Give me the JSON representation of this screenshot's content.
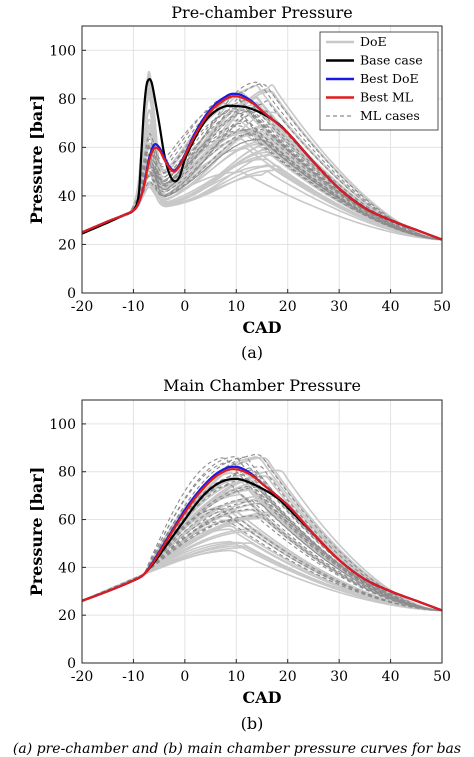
{
  "chart_data": [
    {
      "type": "line",
      "title": "Pre-chamber Pressure",
      "xlabel": "CAD",
      "ylabel": "Pressure [bar]",
      "panel_label": "(a)",
      "xlim": [
        -20,
        50
      ],
      "ylim": [
        0,
        110
      ],
      "xticks": [
        "-20",
        "-10",
        "0",
        "10",
        "20",
        "30",
        "40",
        "50"
      ],
      "yticks": [
        "0",
        "20",
        "40",
        "60",
        "80",
        "100"
      ],
      "grid": true,
      "legend_position": "top-right",
      "legend": [
        "DoE",
        "Base case",
        "Best DoE",
        "Best ML",
        "ML cases"
      ],
      "colors": {
        "DoE": "#c8c8c8",
        "Base case": "#000000",
        "Best DoE": "#1a1ae6",
        "Best ML": "#e01b1b",
        "ML cases": "#8c8c8c"
      },
      "series": [
        {
          "name": "Base case",
          "x": [
            -20,
            -15,
            -12,
            -10,
            -9,
            -8.5,
            -8,
            -7.5,
            -7,
            -6.5,
            -6,
            -5,
            -4,
            -3,
            -2,
            -1,
            0,
            2,
            4,
            6,
            8,
            10,
            12,
            15,
            18,
            20,
            25,
            30,
            35,
            40,
            45,
            50
          ],
          "y": [
            24.5,
            29,
            32,
            34,
            40,
            56,
            74,
            85,
            88,
            87,
            82,
            70,
            57,
            49,
            46,
            48,
            55,
            64,
            71,
            75,
            77,
            77,
            76.5,
            74,
            70,
            66,
            54,
            43,
            35,
            30,
            26,
            22
          ]
        },
        {
          "name": "Best DoE",
          "x": [
            -20,
            -15,
            -12,
            -10,
            -9,
            -8,
            -7,
            -6,
            -5,
            -4,
            -3,
            -2,
            -1,
            0,
            2,
            4,
            6,
            8,
            9,
            10,
            11,
            13,
            15,
            20,
            25,
            30,
            35,
            40,
            45,
            50
          ],
          "y": [
            25,
            29.5,
            32,
            34,
            37,
            44,
            55,
            61,
            60,
            56,
            52,
            50.5,
            53,
            57,
            66,
            73,
            78,
            81,
            82,
            82,
            81.5,
            79,
            75,
            66,
            54,
            43,
            35,
            30,
            26,
            22
          ]
        },
        {
          "name": "Best ML",
          "x": [
            -20,
            -15,
            -12,
            -10,
            -9,
            -8,
            -7,
            -6,
            -5,
            -4,
            -3,
            -2,
            -1,
            0,
            2,
            4,
            6,
            8,
            9,
            10,
            11,
            13,
            15,
            20,
            25,
            30,
            35,
            40,
            45,
            50
          ],
          "y": [
            25,
            29.5,
            32,
            34,
            37,
            43.5,
            54,
            59.5,
            59,
            55,
            51.5,
            50,
            52.5,
            56.5,
            65,
            72,
            77,
            80,
            81,
            81,
            80.5,
            78.5,
            75,
            66,
            54,
            43,
            35,
            30,
            26,
            22
          ]
        }
      ]
    },
    {
      "type": "line",
      "title": "Main Chamber Pressure",
      "xlabel": "CAD",
      "ylabel": "Pressure [bar]",
      "panel_label": "(b)",
      "xlim": [
        -20,
        50
      ],
      "ylim": [
        0,
        110
      ],
      "xticks": [
        "-20",
        "-10",
        "0",
        "10",
        "20",
        "30",
        "40",
        "50"
      ],
      "yticks": [
        "0",
        "20",
        "40",
        "60",
        "80",
        "100"
      ],
      "grid": true,
      "series": [
        {
          "name": "Base case",
          "x": [
            -20,
            -15,
            -10,
            -8,
            -6,
            -4,
            -2,
            0,
            2,
            4,
            6,
            8,
            10,
            12,
            15,
            18,
            20,
            25,
            30,
            35,
            40,
            45,
            50
          ],
          "y": [
            26,
            30,
            34.5,
            37,
            42,
            48,
            54,
            60,
            66,
            71,
            74.5,
            76.5,
            77,
            76,
            73,
            69,
            65,
            54,
            43,
            35,
            30,
            26,
            22
          ]
        },
        {
          "name": "Best DoE",
          "x": [
            -20,
            -15,
            -10,
            -8,
            -6,
            -4,
            -2,
            0,
            2,
            4,
            6,
            8,
            9,
            10,
            11,
            13,
            15,
            20,
            25,
            30,
            35,
            40,
            45,
            50
          ],
          "y": [
            26,
            30,
            34.5,
            37,
            43,
            50,
            57,
            64,
            70,
            75,
            79,
            81.5,
            82,
            82,
            81.5,
            79,
            75,
            66,
            54,
            43,
            35,
            30,
            26,
            22
          ]
        },
        {
          "name": "Best ML",
          "x": [
            -20,
            -15,
            -10,
            -8,
            -6,
            -4,
            -2,
            0,
            2,
            4,
            6,
            8,
            9,
            10,
            11,
            13,
            15,
            20,
            25,
            30,
            35,
            40,
            45,
            50
          ],
          "y": [
            26,
            30,
            34.5,
            37,
            42.5,
            49.5,
            56.5,
            63,
            69,
            74,
            78,
            80.5,
            81,
            81,
            80.5,
            78.5,
            75,
            66,
            54,
            43,
            35,
            30,
            26,
            22
          ]
        }
      ]
    }
  ],
  "caption": "(a) pre-chamber and (b) main chamber pressure curves for bas"
}
